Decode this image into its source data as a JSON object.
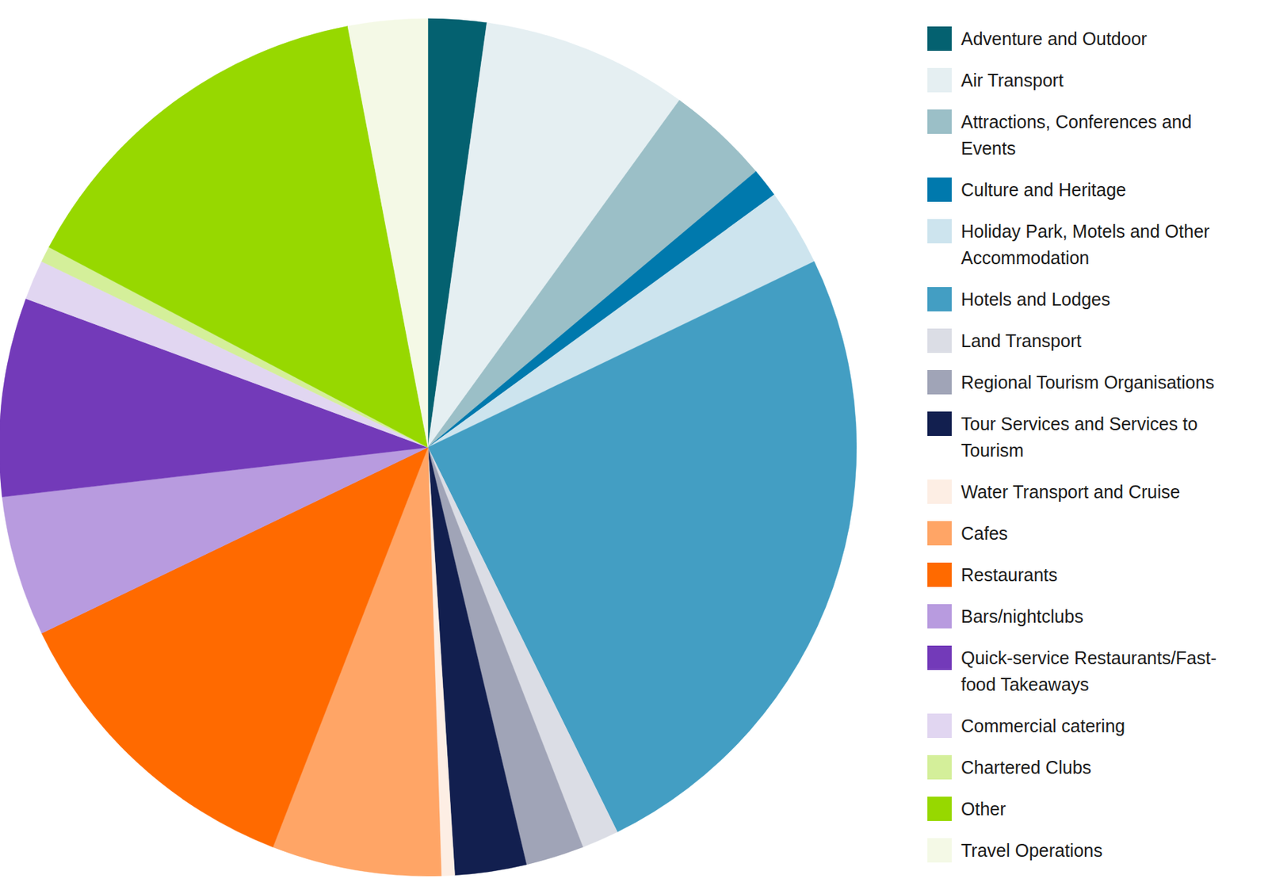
{
  "chart_data": {
    "type": "pie",
    "categories": [
      "Adventure and Outdoor",
      "Air Transport",
      "Attractions, Conferences and Events",
      "Culture and Heritage",
      "Holiday Park, Motels and Other Accommodation",
      "Hotels and Lodges",
      "Land Transport",
      "Regional Tourism Organisations",
      "Tour Services and Services to Tourism",
      "Water Transport and Cruise",
      "Cafes",
      "Restaurants",
      "Bars/nightclubs",
      "Quick-service Restaurants/Fast-food Takeaways",
      "Commercial catering",
      "Chartered Clubs",
      "Other",
      "Travel Operations"
    ],
    "values": [
      2.2,
      7.8,
      3.9,
      1.1,
      2.9,
      24.9,
      1.4,
      2.2,
      2.7,
      0.5,
      6.4,
      12.0,
      5.3,
      7.5,
      1.5,
      0.6,
      14.3,
      3.0
    ],
    "colors": [
      "#046170",
      "#e5eff2",
      "#9bbfc7",
      "#0079ad",
      "#cde4ee",
      "#439ec3",
      "#dbdde5",
      "#a0a4b7",
      "#121f4f",
      "#fdeee4",
      "#ffa566",
      "#ff6a00",
      "#b89bdf",
      "#733ab9",
      "#e1d6f1",
      "#d4ef9a",
      "#97d800",
      "#f4f9e6"
    ],
    "legend": "right"
  }
}
